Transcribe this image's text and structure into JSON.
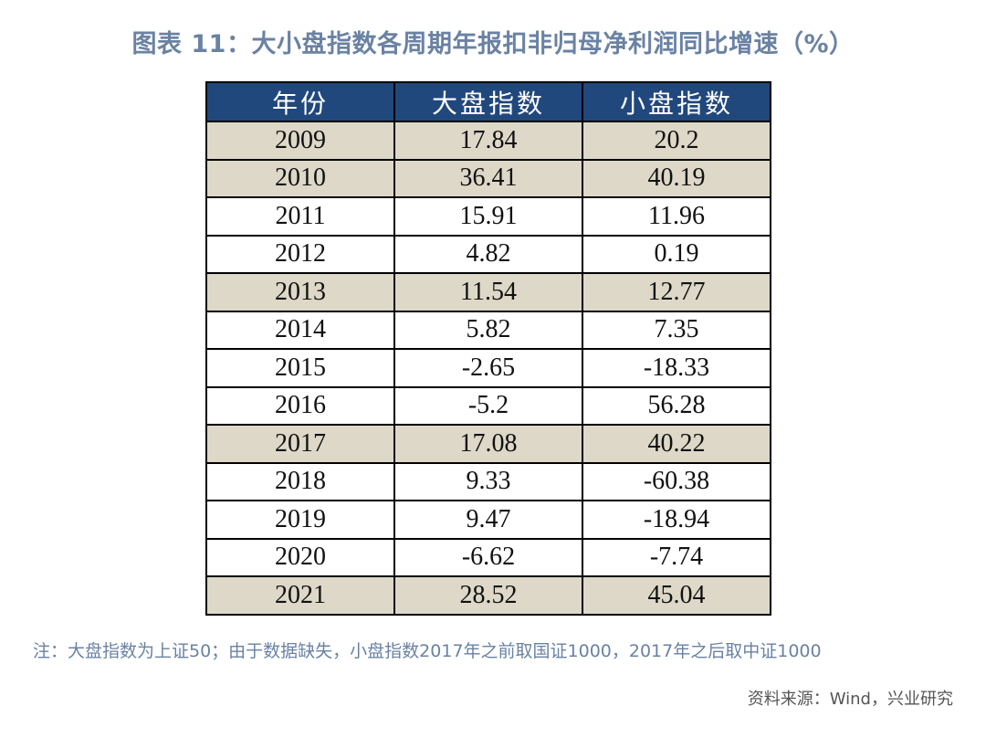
{
  "title": "图表 11：大小盘指数各周期年报扣非归母净利润同比增速（%）",
  "note": "注：大盘指数为上证50；由于数据缺失，小盘指数2017年之前取国证1000，2017年之后取中证1000",
  "source": "资料来源：Wind，兴业研究",
  "colors": {
    "header_bg": "#21487d",
    "shade_bg": "#ddd8c7",
    "title": "#6a82a3"
  },
  "chart_data": {
    "type": "table",
    "title": "图表 11：大小盘指数各周期年报扣非归母净利润同比增速（%）",
    "columns": [
      "年份",
      "大盘指数",
      "小盘指数"
    ],
    "rows": [
      {
        "year": "2009",
        "large": "17.84",
        "small": "20.2",
        "shaded": true
      },
      {
        "year": "2010",
        "large": "36.41",
        "small": "40.19",
        "shaded": true
      },
      {
        "year": "2011",
        "large": "15.91",
        "small": "11.96",
        "shaded": false
      },
      {
        "year": "2012",
        "large": "4.82",
        "small": "0.19",
        "shaded": false
      },
      {
        "year": "2013",
        "large": "11.54",
        "small": "12.77",
        "shaded": true
      },
      {
        "year": "2014",
        "large": "5.82",
        "small": "7.35",
        "shaded": false
      },
      {
        "year": "2015",
        "large": "-2.65",
        "small": "-18.33",
        "shaded": false
      },
      {
        "year": "2016",
        "large": "-5.2",
        "small": "56.28",
        "shaded": false
      },
      {
        "year": "2017",
        "large": "17.08",
        "small": "40.22",
        "shaded": true
      },
      {
        "year": "2018",
        "large": "9.33",
        "small": "-60.38",
        "shaded": false
      },
      {
        "year": "2019",
        "large": "9.47",
        "small": "-18.94",
        "shaded": false
      },
      {
        "year": "2020",
        "large": "-6.62",
        "small": "-7.74",
        "shaded": false
      },
      {
        "year": "2021",
        "large": "28.52",
        "small": "45.04",
        "shaded": true
      }
    ]
  }
}
